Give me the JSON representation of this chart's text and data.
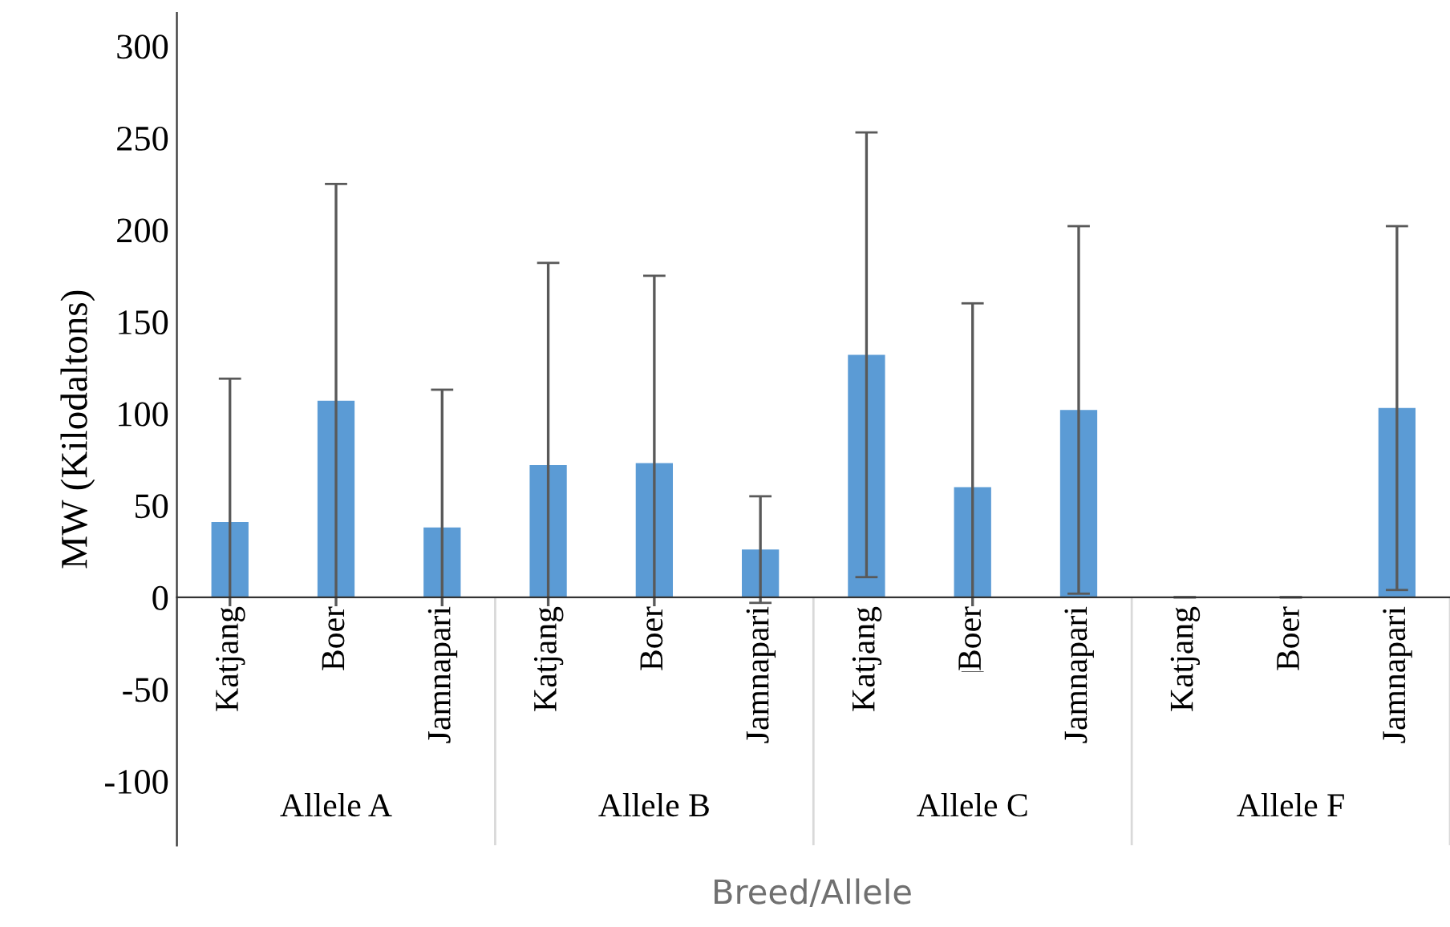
{
  "chart_data": {
    "type": "bar",
    "ylabel": "MW (Kilodaltons)",
    "xlabel": "Breed/Allele",
    "categories": [
      "Katjang",
      "Boer",
      "Jamnapari",
      "Katjang",
      "Boer",
      "Jamnapari",
      "Katjang",
      "Boer",
      "Jamnapari",
      "Katjang",
      "Boer",
      "Jamnapari"
    ],
    "values": [
      41,
      107,
      38,
      72,
      73,
      26,
      132,
      60,
      102,
      0,
      0,
      103
    ],
    "errors": [
      78,
      118,
      75,
      110,
      102,
      29,
      121,
      100,
      100,
      0,
      0,
      99
    ],
    "color": "#5b9bd5",
    "annotations": [
      "Allele A",
      "Allele B",
      "Allele C",
      "Allele F"
    ],
    "ylim": [
      -135,
      318
    ],
    "yticks": [
      -100,
      -50,
      0,
      50,
      100,
      150,
      200,
      250,
      300
    ],
    "grid": false,
    "legend": false
  }
}
